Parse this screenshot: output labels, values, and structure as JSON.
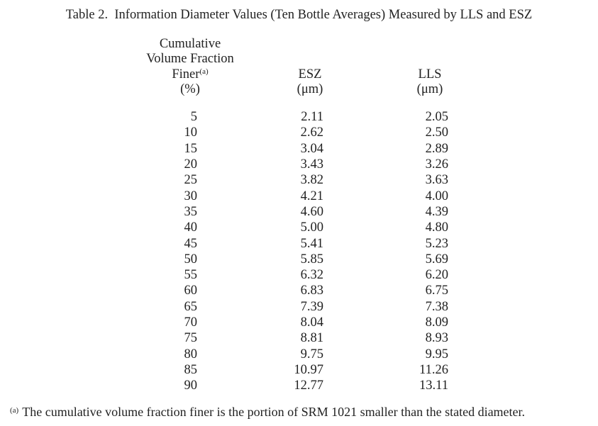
{
  "title": "Table 2.  Information Diameter Values (Ten Bottle Averages) Measured by LLS and ESZ",
  "headers": {
    "col1_lines": [
      "Cumulative",
      "Volume Fraction",
      "Finer",
      "(%)"
    ],
    "col1_sup": "(a)",
    "col2_lines": [
      "ESZ",
      "(μm)"
    ],
    "col3_lines": [
      "LLS",
      "(μm)"
    ]
  },
  "rows": [
    {
      "pct": "5",
      "esz": "2.11",
      "lls": "2.05"
    },
    {
      "pct": "10",
      "esz": "2.62",
      "lls": "2.50"
    },
    {
      "pct": "15",
      "esz": "3.04",
      "lls": "2.89"
    },
    {
      "pct": "20",
      "esz": "3.43",
      "lls": "3.26"
    },
    {
      "pct": "25",
      "esz": "3.82",
      "lls": "3.63"
    },
    {
      "pct": "30",
      "esz": "4.21",
      "lls": "4.00"
    },
    {
      "pct": "35",
      "esz": "4.60",
      "lls": "4.39"
    },
    {
      "pct": "40",
      "esz": "5.00",
      "lls": "4.80"
    },
    {
      "pct": "45",
      "esz": "5.41",
      "lls": "5.23"
    },
    {
      "pct": "50",
      "esz": "5.85",
      "lls": "5.69"
    },
    {
      "pct": "55",
      "esz": "6.32",
      "lls": "6.20"
    },
    {
      "pct": "60",
      "esz": "6.83",
      "lls": "6.75"
    },
    {
      "pct": "65",
      "esz": "7.39",
      "lls": "7.38"
    },
    {
      "pct": "70",
      "esz": "8.04",
      "lls": "8.09"
    },
    {
      "pct": "75",
      "esz": "8.81",
      "lls": "8.93"
    },
    {
      "pct": "80",
      "esz": "9.75",
      "lls": "9.95"
    },
    {
      "pct": "85",
      "esz": "10.97",
      "lls": "11.26"
    },
    {
      "pct": "90",
      "esz": "12.77",
      "lls": "13.11"
    }
  ],
  "footnote": {
    "marker": "(a)",
    "text": "The cumulative volume fraction finer is the portion of SRM 1021 smaller than the stated diameter."
  },
  "colors": {
    "text": "#222222",
    "background": "#ffffff"
  }
}
